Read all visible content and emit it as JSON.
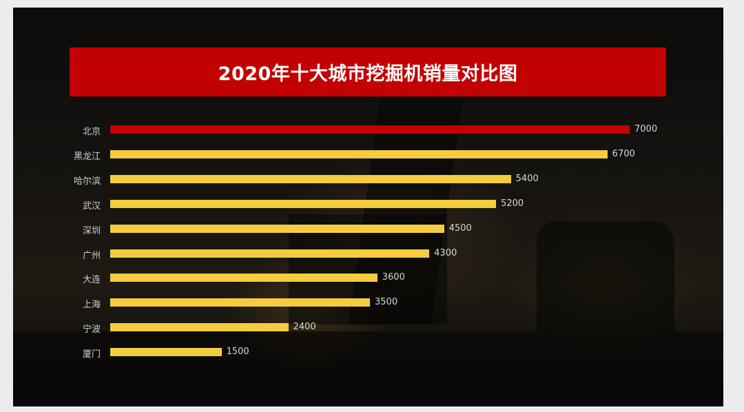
{
  "title": "2020年十大城市挖掘机销量对比图",
  "colors": {
    "banner": "#c20202",
    "highlight_bar": "#c20202",
    "bar": "#f5cc3f",
    "background": "#12110e",
    "frame": "#ececec",
    "label_text": "#cfcfcf"
  },
  "chart_data": {
    "type": "bar",
    "orientation": "horizontal",
    "title": "2020年十大城市挖掘机销量对比图",
    "xlabel": "",
    "ylabel": "",
    "categories": [
      "北京",
      "黑龙江",
      "哈尔滨",
      "武汉",
      "深圳",
      "广州",
      "大连",
      "上海",
      "宁波",
      "厦门"
    ],
    "values": [
      7000,
      6700,
      5400,
      5200,
      4500,
      4300,
      3600,
      3500,
      2400,
      1500
    ],
    "value_labels": [
      "7000",
      "6700",
      "5400",
      "5200",
      "4500",
      "4300",
      "3600",
      "3500",
      "2400",
      "1500"
    ],
    "highlight_index": 0,
    "grid": false,
    "legend": "none",
    "xlim": [
      0,
      7000
    ],
    "data_labels": true
  }
}
